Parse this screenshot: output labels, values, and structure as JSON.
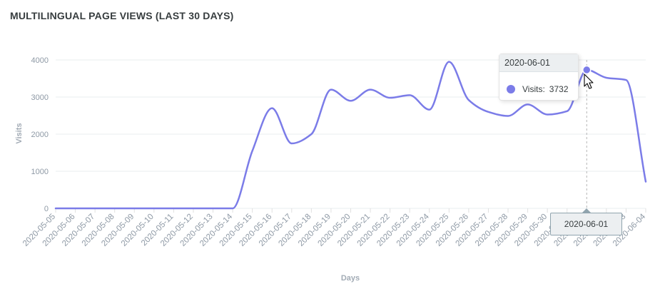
{
  "title": "MULTILINGUAL PAGE VIEWS (LAST 30 DAYS)",
  "tooltip": {
    "date": "2020-06-01",
    "series_label": "Visits:",
    "value": "3732"
  },
  "x_tooltip": {
    "date": "2020-06-01"
  },
  "colors": {
    "line": "#7b7ce8",
    "grid": "#e9ecef",
    "axis_text": "#8e99a5",
    "title": "#373d3f"
  },
  "chart_data": {
    "type": "line",
    "title": "MULTILINGUAL PAGE VIEWS (LAST 30 DAYS)",
    "xlabel": "Days",
    "ylabel": "Visits",
    "ylim": [
      0,
      4000
    ],
    "yticks": [
      "0",
      "1000",
      "2000",
      "3000",
      "4000"
    ],
    "grid": true,
    "categories": [
      "2020-05-05",
      "2020-05-06",
      "2020-05-07",
      "2020-05-08",
      "2020-05-09",
      "2020-05-10",
      "2020-05-11",
      "2020-05-12",
      "2020-05-13",
      "2020-05-14",
      "2020-05-15",
      "2020-05-16",
      "2020-05-17",
      "2020-05-18",
      "2020-05-19",
      "2020-05-20",
      "2020-05-21",
      "2020-05-22",
      "2020-05-23",
      "2020-05-24",
      "2020-05-25",
      "2020-05-26",
      "2020-05-27",
      "2020-05-28",
      "2020-05-29",
      "2020-05-30",
      "2020-05-31",
      "2020-06-01",
      "2020-06-02",
      "2020-06-03",
      "2020-06-04"
    ],
    "series": [
      {
        "name": "Visits",
        "values": [
          0,
          0,
          0,
          0,
          0,
          0,
          0,
          0,
          0,
          0,
          1550,
          2700,
          1750,
          2000,
          3200,
          2900,
          3200,
          2980,
          3050,
          2660,
          3950,
          2920,
          2600,
          2490,
          2800,
          2530,
          2620,
          3732,
          3520,
          3460,
          720
        ]
      }
    ]
  }
}
